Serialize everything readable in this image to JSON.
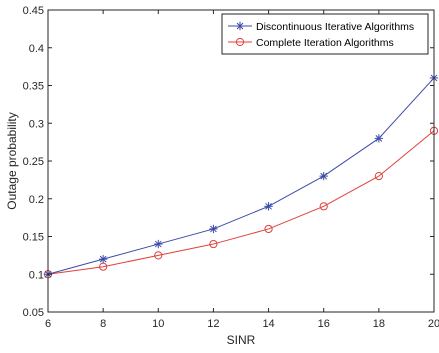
{
  "chart_data": {
    "type": "line",
    "title": "",
    "xlabel": "SINR",
    "ylabel": "Outage probability",
    "xlim": [
      6,
      20
    ],
    "ylim": [
      0.05,
      0.45
    ],
    "xticks": [
      6,
      8,
      10,
      12,
      14,
      16,
      18,
      20
    ],
    "yticks": [
      0.05,
      0.1,
      0.15,
      0.2,
      0.25,
      0.3,
      0.35,
      0.4,
      0.45
    ],
    "xtick_labels": [
      "6",
      "8",
      "10",
      "12",
      "14",
      "16",
      "18",
      "20"
    ],
    "ytick_labels": [
      "0.05",
      "0.1",
      "0.15",
      "0.2",
      "0.25",
      "0.3",
      "0.35",
      "0.4",
      "0.45"
    ],
    "grid": false,
    "legend_position": "top-right",
    "x": [
      6,
      8,
      10,
      12,
      14,
      16,
      18,
      20
    ],
    "series": [
      {
        "name": "Discontinuous Iterative Algorithms",
        "marker": "asterisk",
        "color": "#3b4ba8",
        "values": [
          0.1,
          0.12,
          0.14,
          0.16,
          0.19,
          0.23,
          0.28,
          0.36
        ]
      },
      {
        "name": "Complete Iteration Algorithms",
        "marker": "circle",
        "color": "#e0403a",
        "values": [
          0.1,
          0.11,
          0.125,
          0.14,
          0.16,
          0.19,
          0.23,
          0.29
        ]
      }
    ]
  }
}
